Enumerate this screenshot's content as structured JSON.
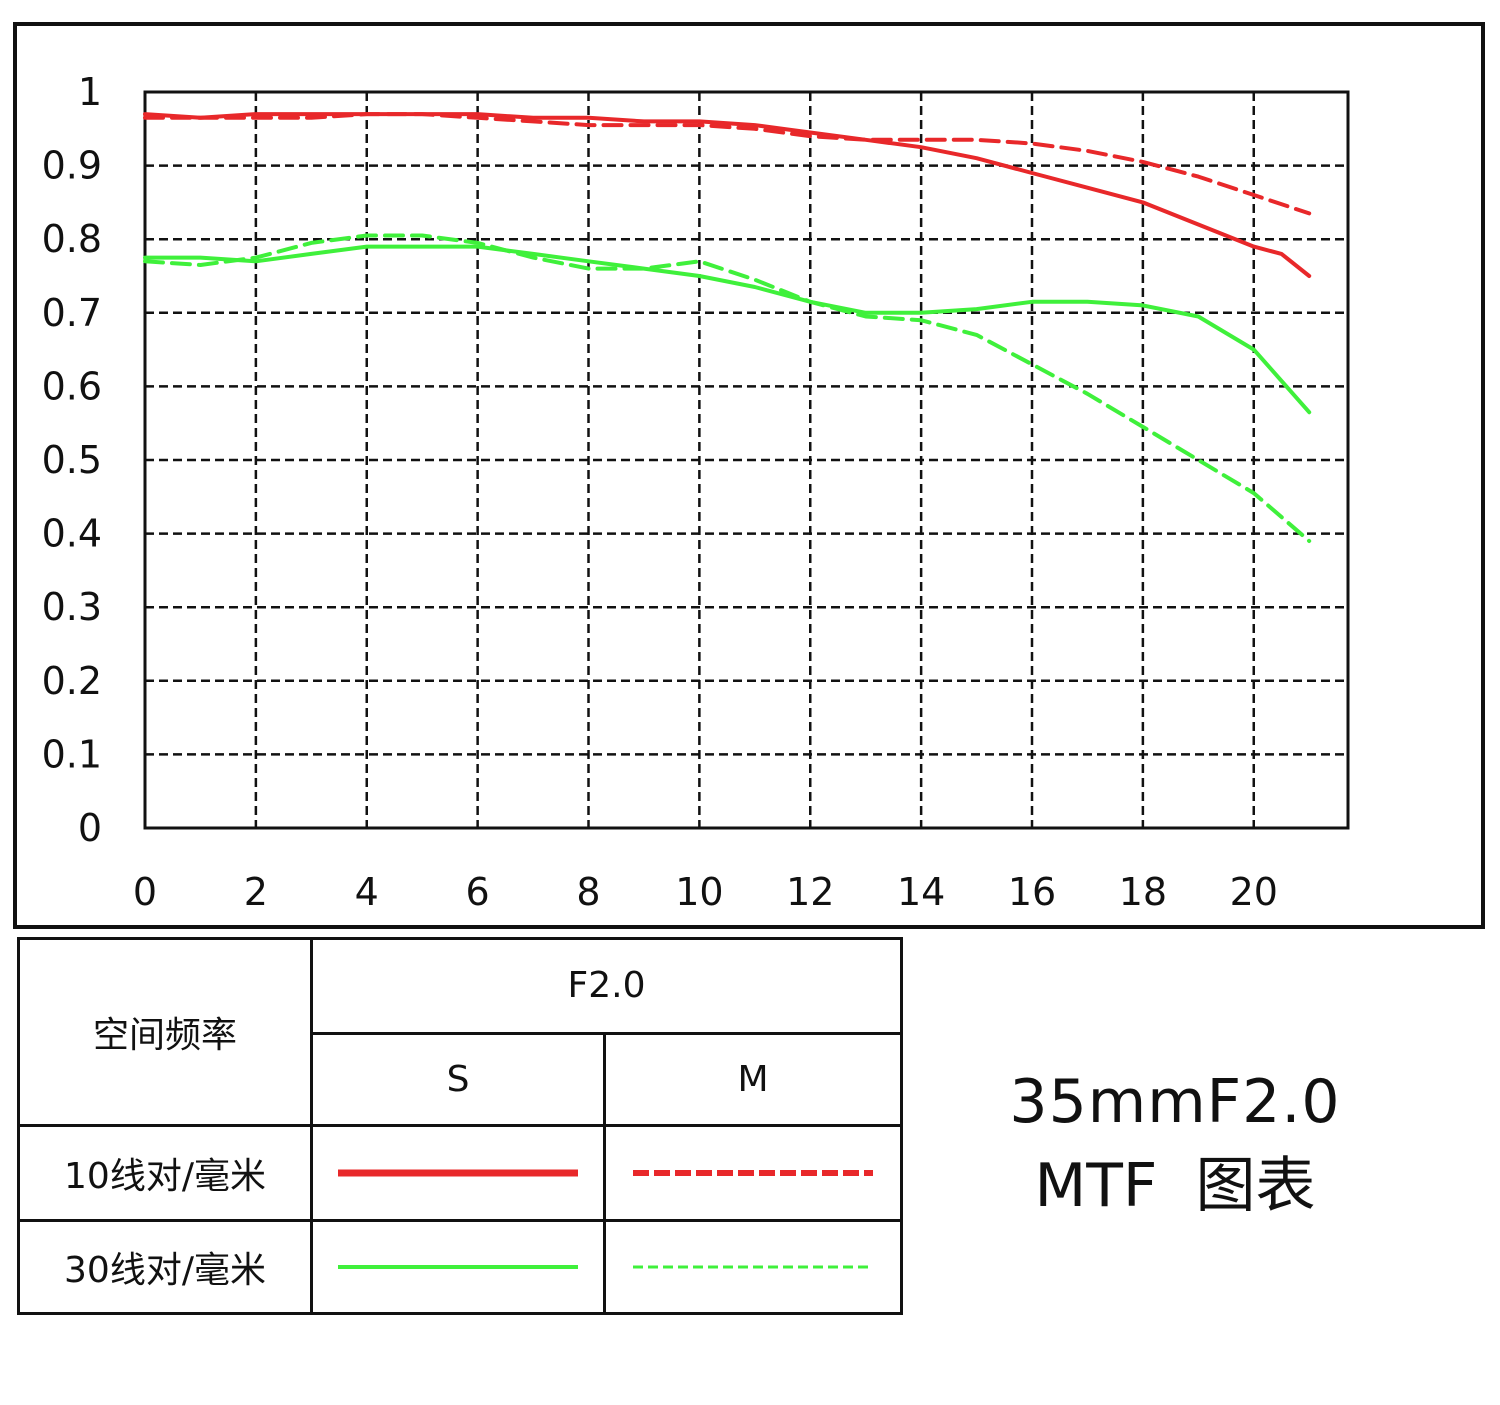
{
  "chart_data": {
    "type": "line",
    "title": "35mmF2.0 MTF 图表",
    "xlabel": "",
    "ylabel": "",
    "xlim": [
      0,
      21.7
    ],
    "ylim": [
      0,
      1
    ],
    "x_ticks": [
      "0",
      "2",
      "4",
      "6",
      "8",
      "10",
      "12",
      "14",
      "16",
      "18",
      "20"
    ],
    "y_ticks": [
      "0",
      "0.1",
      "0.2",
      "0.3",
      "0.4",
      "0.5",
      "0.6",
      "0.7",
      "0.8",
      "0.9",
      "1"
    ],
    "grid": true,
    "series": [
      {
        "name": "10线对/毫米 S",
        "color": "#e8282a",
        "style": "solid",
        "x": [
          0,
          1,
          2,
          3,
          4,
          5,
          6,
          7,
          8,
          9,
          10,
          11,
          12,
          13,
          14,
          15,
          16,
          17,
          18,
          19,
          20,
          20.5,
          21
        ],
        "y": [
          0.97,
          0.965,
          0.97,
          0.97,
          0.97,
          0.97,
          0.97,
          0.965,
          0.965,
          0.96,
          0.96,
          0.955,
          0.945,
          0.935,
          0.925,
          0.91,
          0.89,
          0.87,
          0.85,
          0.82,
          0.79,
          0.78,
          0.75
        ]
      },
      {
        "name": "10线对/毫米 M",
        "color": "#e8282a",
        "style": "dashed",
        "x": [
          0,
          1,
          2,
          3,
          4,
          5,
          6,
          7,
          8,
          9,
          10,
          11,
          12,
          13,
          14,
          15,
          16,
          17,
          18,
          19,
          20,
          21
        ],
        "y": [
          0.965,
          0.965,
          0.965,
          0.965,
          0.97,
          0.97,
          0.965,
          0.96,
          0.955,
          0.955,
          0.955,
          0.95,
          0.94,
          0.935,
          0.935,
          0.935,
          0.93,
          0.92,
          0.905,
          0.885,
          0.86,
          0.835
        ]
      },
      {
        "name": "30线对/毫米 S",
        "color": "#3ff03b",
        "style": "solid",
        "x": [
          0,
          1,
          2,
          3,
          4,
          5,
          6,
          7,
          8,
          9,
          10,
          11,
          12,
          13,
          14,
          15,
          16,
          17,
          18,
          19,
          20,
          21
        ],
        "y": [
          0.775,
          0.775,
          0.77,
          0.78,
          0.79,
          0.79,
          0.79,
          0.78,
          0.77,
          0.76,
          0.75,
          0.735,
          0.715,
          0.7,
          0.7,
          0.705,
          0.715,
          0.715,
          0.71,
          0.695,
          0.65,
          0.565
        ]
      },
      {
        "name": "30线对/毫米 M",
        "color": "#3ff03b",
        "style": "dashed",
        "x": [
          0,
          1,
          2,
          3,
          4,
          5,
          6,
          7,
          8,
          9,
          10,
          11,
          12,
          13,
          14,
          15,
          16,
          17,
          18,
          19,
          20,
          21
        ],
        "y": [
          0.77,
          0.765,
          0.775,
          0.795,
          0.805,
          0.805,
          0.795,
          0.775,
          0.76,
          0.76,
          0.77,
          0.745,
          0.715,
          0.695,
          0.69,
          0.67,
          0.63,
          0.59,
          0.545,
          0.5,
          0.455,
          0.39
        ]
      }
    ]
  },
  "legend_table": {
    "header_label": "空间频率",
    "aperture": "F2.0",
    "col_s": "S",
    "col_m": "M",
    "rows": [
      {
        "label": "10线对/毫米",
        "color": "#e8282a"
      },
      {
        "label": "30线对/毫米",
        "color": "#3ff03b"
      }
    ]
  },
  "caption": {
    "line1": "35mmF2.0",
    "line2a": "MTF",
    "line2b": "图表"
  }
}
